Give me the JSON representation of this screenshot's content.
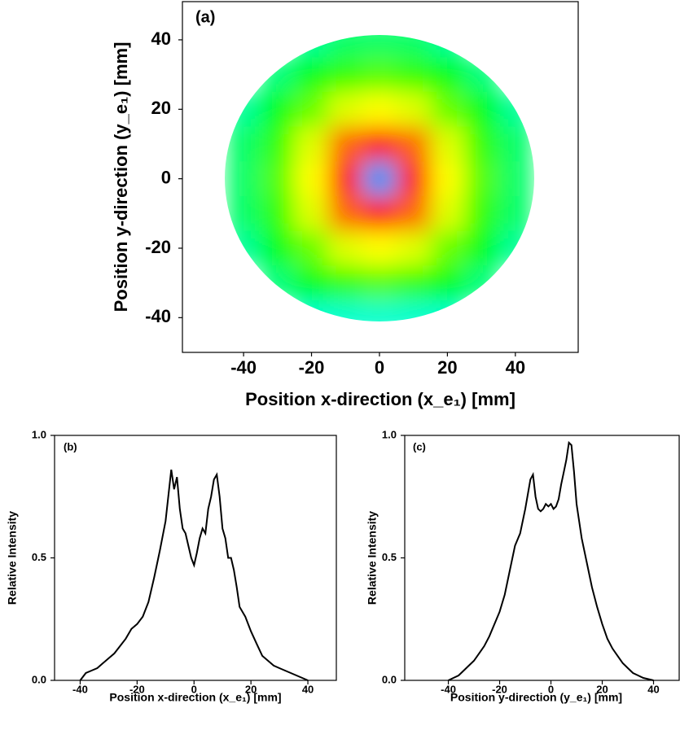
{
  "chart_data": [
    {
      "type": "heatmap",
      "panel_label": "(a)",
      "x_label": "Position x-direction (x_e₁) [mm]",
      "y_label": "Position y-direction (y_e₁) [mm]",
      "x": [
        -40,
        -30,
        -20,
        -10,
        0,
        10,
        20,
        30,
        40
      ],
      "y": [
        40,
        30,
        20,
        10,
        0,
        -10,
        -20,
        -30,
        -40
      ],
      "z": [
        [
          null,
          null,
          0.35,
          0.4,
          0.4,
          0.4,
          0.35,
          null,
          null
        ],
        [
          null,
          0.38,
          0.48,
          0.55,
          0.58,
          0.55,
          0.48,
          0.38,
          null
        ],
        [
          0.35,
          0.48,
          0.6,
          0.72,
          0.75,
          0.72,
          0.6,
          0.48,
          0.35
        ],
        [
          0.4,
          0.55,
          0.72,
          0.9,
          1.0,
          0.9,
          0.72,
          0.55,
          0.4
        ],
        [
          0.4,
          0.58,
          0.75,
          1.0,
          0.15,
          1.0,
          0.75,
          0.58,
          0.4
        ],
        [
          0.4,
          0.55,
          0.72,
          0.9,
          1.0,
          0.9,
          0.72,
          0.55,
          0.4
        ],
        [
          0.35,
          0.48,
          0.6,
          0.72,
          0.75,
          0.72,
          0.6,
          0.48,
          0.35
        ],
        [
          null,
          0.38,
          0.48,
          0.55,
          0.58,
          0.55,
          0.48,
          0.38,
          null
        ],
        [
          null,
          null,
          0.3,
          0.3,
          0.3,
          0.3,
          0.3,
          null,
          null
        ]
      ],
      "xlim": [
        -58,
        58.5
      ],
      "ylim": [
        -50,
        51
      ],
      "xticks": [
        -40,
        -20,
        0,
        20,
        40
      ],
      "yticks": [
        -40,
        -20,
        0,
        20,
        40
      ]
    },
    {
      "type": "line",
      "panel_label": "(b)",
      "color": "#000000",
      "x_label": "Position x-direction (x_e₁) [mm]",
      "y_label": "Relative Intensity",
      "x": [
        -40,
        -38,
        -36,
        -34,
        -32,
        -30,
        -28,
        -26,
        -24,
        -22,
        -20,
        -18,
        -16,
        -14,
        -12,
        -10,
        -8,
        -7,
        -6,
        -5,
        -4,
        -3,
        -2,
        -1,
        0,
        1,
        2,
        3,
        4,
        5,
        6,
        7,
        8,
        9,
        10,
        11,
        12,
        13,
        14,
        15,
        16,
        18,
        20,
        22,
        24,
        26,
        28,
        30,
        32,
        34,
        36,
        38,
        40
      ],
      "values": [
        0,
        0.03,
        0.04,
        0.05,
        0.07,
        0.09,
        0.11,
        0.14,
        0.17,
        0.21,
        0.23,
        0.26,
        0.32,
        0.42,
        0.53,
        0.65,
        0.86,
        0.78,
        0.83,
        0.7,
        0.62,
        0.6,
        0.55,
        0.5,
        0.47,
        0.52,
        0.58,
        0.62,
        0.6,
        0.7,
        0.75,
        0.82,
        0.84,
        0.75,
        0.62,
        0.58,
        0.5,
        0.5,
        0.45,
        0.38,
        0.3,
        0.26,
        0.2,
        0.15,
        0.1,
        0.08,
        0.06,
        0.05,
        0.04,
        0.03,
        0.02,
        0.01,
        0
      ],
      "xlim": [
        -49,
        50
      ],
      "ylim": [
        0,
        1.0
      ],
      "xticks": [
        -40,
        -20,
        0,
        20,
        40
      ],
      "yticks": [
        {
          "value": 0,
          "label": "0.0"
        },
        {
          "value": 0.5,
          "label": "0.5"
        },
        {
          "value": 1,
          "label": "1.0"
        }
      ]
    },
    {
      "type": "line",
      "panel_label": "(c)",
      "color": "#000000",
      "x_label": "Position y-direction (y_e₁) [mm]",
      "y_label": "Relative Intensity",
      "x": [
        -40,
        -38,
        -36,
        -34,
        -32,
        -30,
        -28,
        -26,
        -24,
        -22,
        -20,
        -18,
        -16,
        -14,
        -12,
        -10,
        -8,
        -7,
        -6,
        -5,
        -4,
        -3,
        -2,
        -1,
        0,
        1,
        2,
        3,
        4,
        5,
        6,
        7,
        8,
        9,
        10,
        12,
        14,
        16,
        18,
        20,
        22,
        24,
        26,
        28,
        30,
        32,
        34,
        36,
        38,
        40
      ],
      "values": [
        0,
        0.01,
        0.02,
        0.04,
        0.06,
        0.08,
        0.11,
        0.14,
        0.18,
        0.23,
        0.28,
        0.35,
        0.45,
        0.55,
        0.6,
        0.7,
        0.82,
        0.84,
        0.75,
        0.7,
        0.69,
        0.7,
        0.72,
        0.71,
        0.72,
        0.7,
        0.71,
        0.74,
        0.8,
        0.85,
        0.9,
        0.97,
        0.96,
        0.85,
        0.72,
        0.58,
        0.48,
        0.38,
        0.3,
        0.23,
        0.17,
        0.13,
        0.1,
        0.07,
        0.05,
        0.03,
        0.02,
        0.01,
        0.005,
        0
      ],
      "xlim": [
        -57,
        50
      ],
      "ylim": [
        0,
        1.0
      ],
      "xticks": [
        -40,
        -20,
        0,
        20,
        40
      ],
      "yticks": [
        {
          "value": 0,
          "label": "0.0"
        },
        {
          "value": 0.5,
          "label": "0.5"
        },
        {
          "value": 1,
          "label": "1.0"
        }
      ]
    }
  ]
}
